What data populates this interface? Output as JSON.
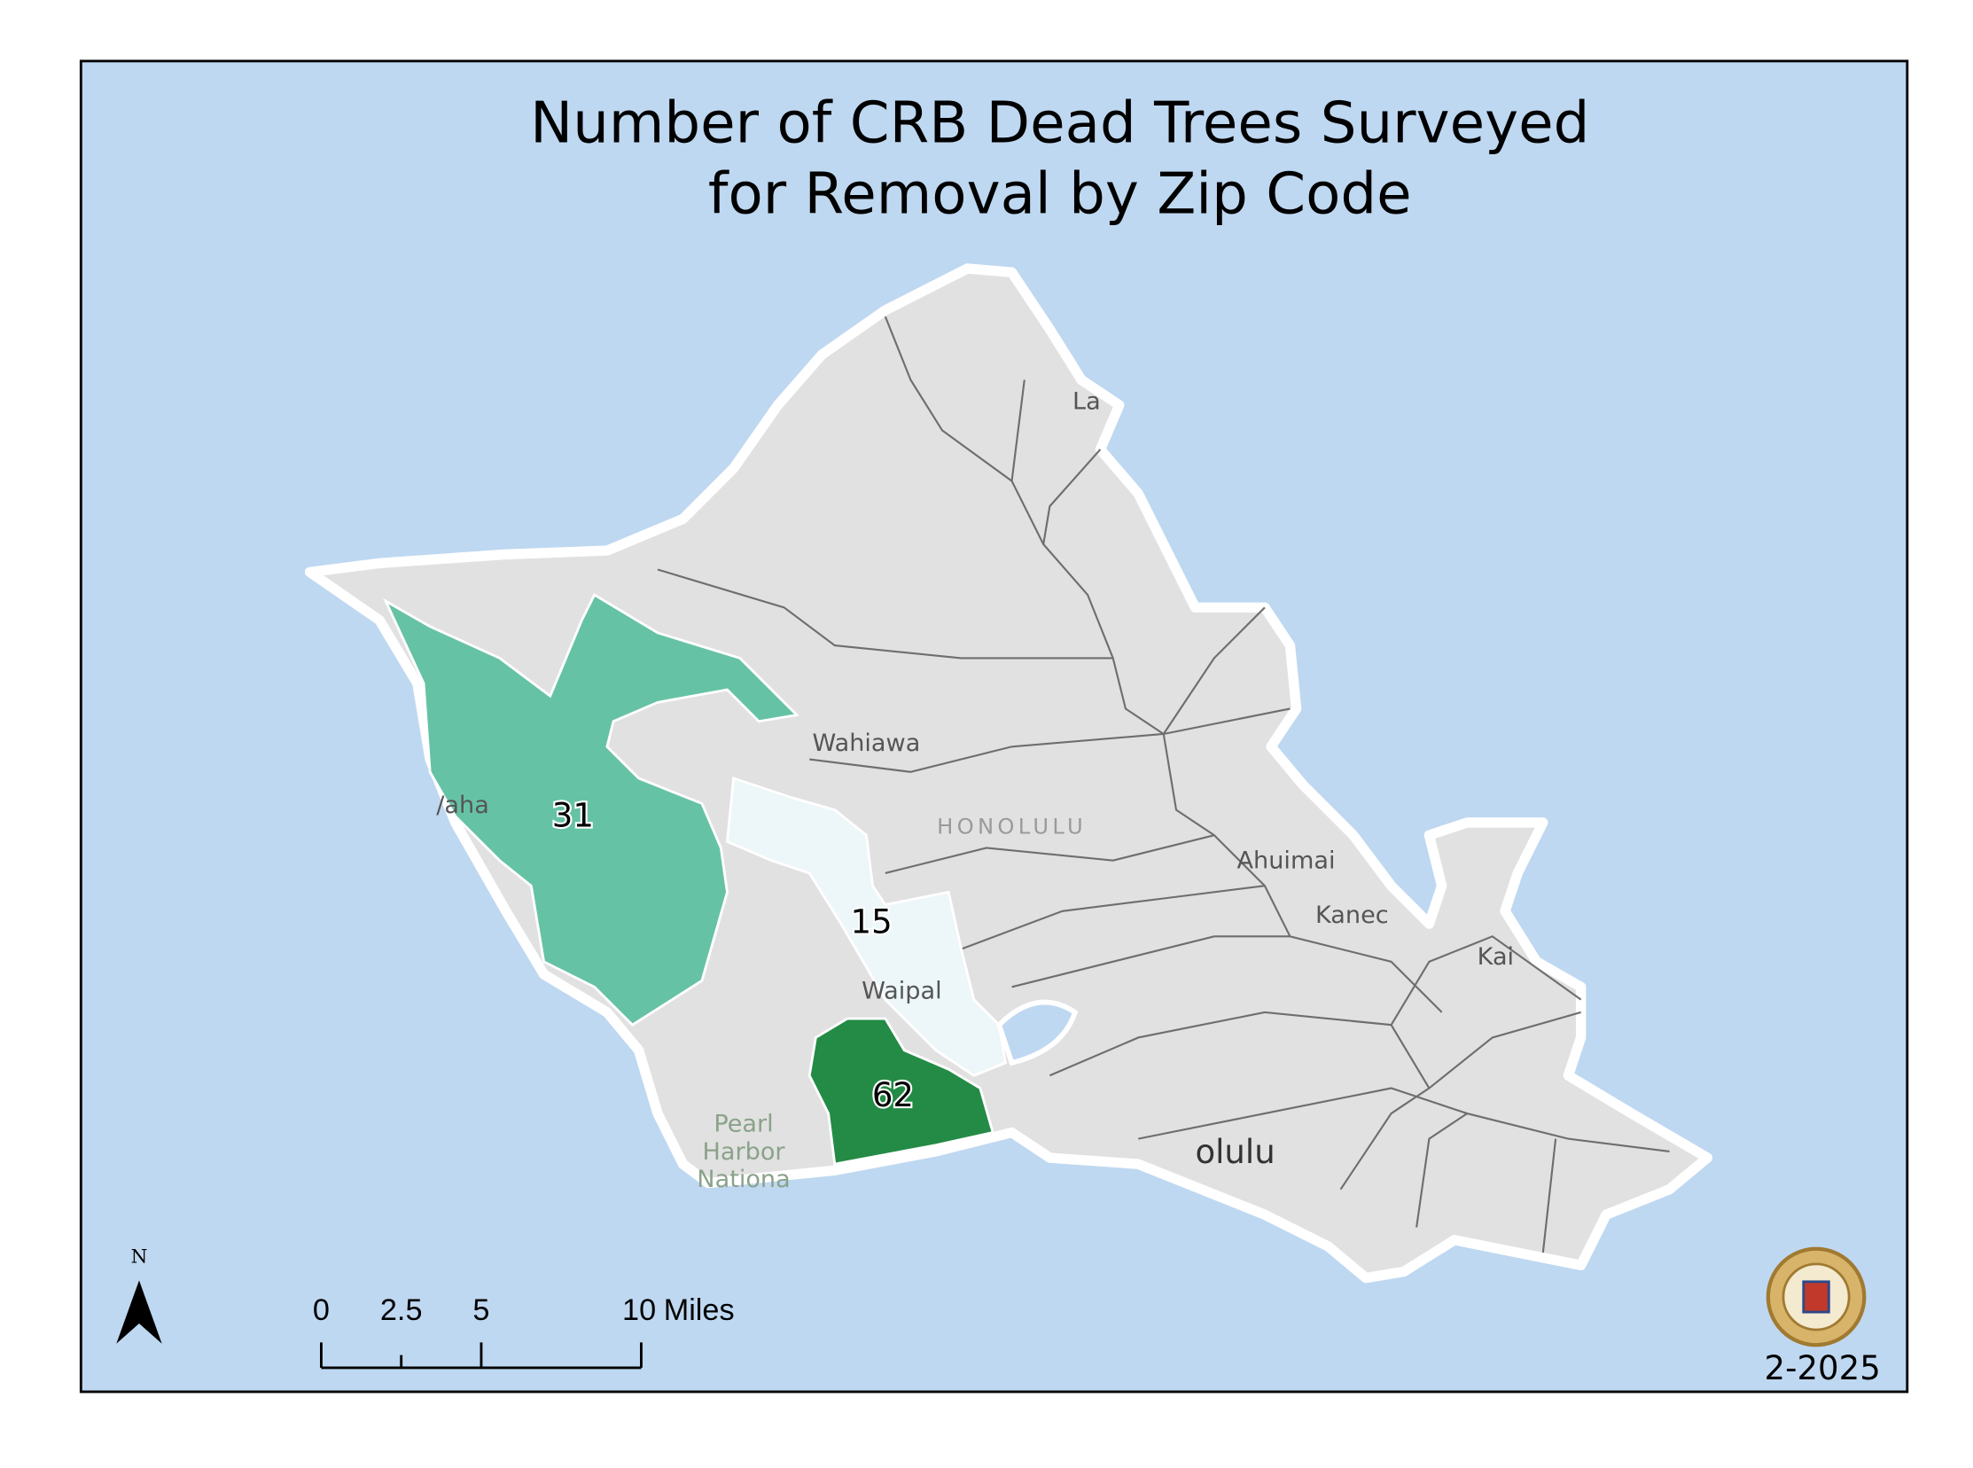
{
  "title": [
    "Number of CRB Dead Trees Surveyed",
    "for Removal by Zip Code"
  ],
  "regions": [
    {
      "value": 31,
      "color": "#66c2a5"
    },
    {
      "value": 15,
      "color": "#edf6f8"
    },
    {
      "value": 62,
      "color": "#238b45"
    }
  ],
  "place_labels": [
    "Wahiawa",
    "HONOLULU",
    "Waipal",
    "Ahuimai",
    "Kanec",
    "Kai",
    "La",
    "/aha",
    "Pearl",
    "Harbor",
    "Nationa",
    "olulu"
  ],
  "scale_bar": {
    "ticks": [
      0,
      2.5,
      5,
      10
    ],
    "unit": "Miles"
  },
  "north": "N",
  "date": "2-2025"
}
